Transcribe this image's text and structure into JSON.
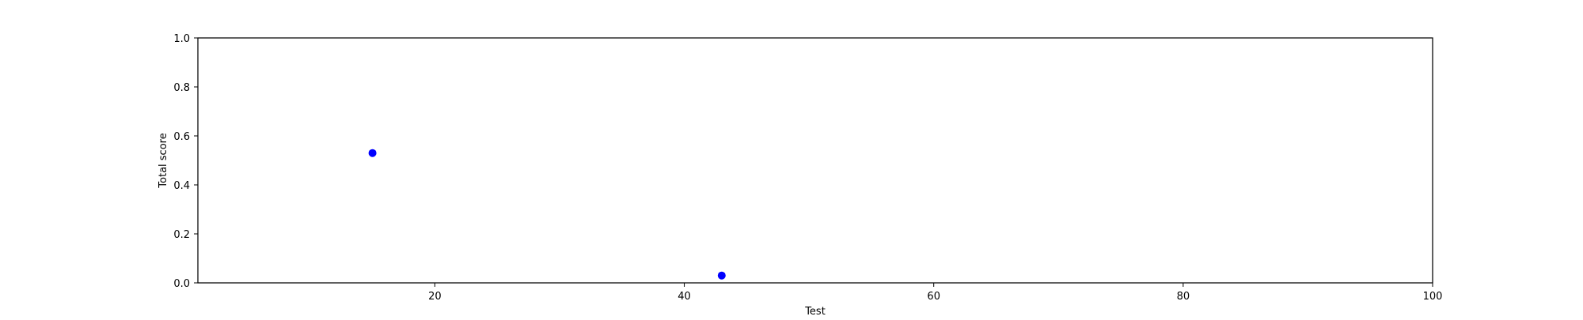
{
  "chart_data": {
    "type": "scatter",
    "title": "",
    "xlabel": "Test",
    "ylabel": "Total score",
    "xlim": [
      1,
      100
    ],
    "ylim": [
      0,
      1
    ],
    "x_ticks": [
      20,
      40,
      60,
      80,
      100
    ],
    "y_ticks": [
      0.0,
      0.2,
      0.4,
      0.6,
      0.8,
      1.0
    ],
    "x_tick_labels": [
      "20",
      "40",
      "60",
      "80",
      "100"
    ],
    "y_tick_labels": [
      "0.0",
      "0.2",
      "0.4",
      "0.6",
      "0.8",
      "1.0"
    ],
    "grid": false,
    "series": [
      {
        "color": "#0000ff",
        "points": [
          {
            "x": 15,
            "y": 0.53
          },
          {
            "x": 43,
            "y": 0.03
          }
        ]
      }
    ]
  }
}
